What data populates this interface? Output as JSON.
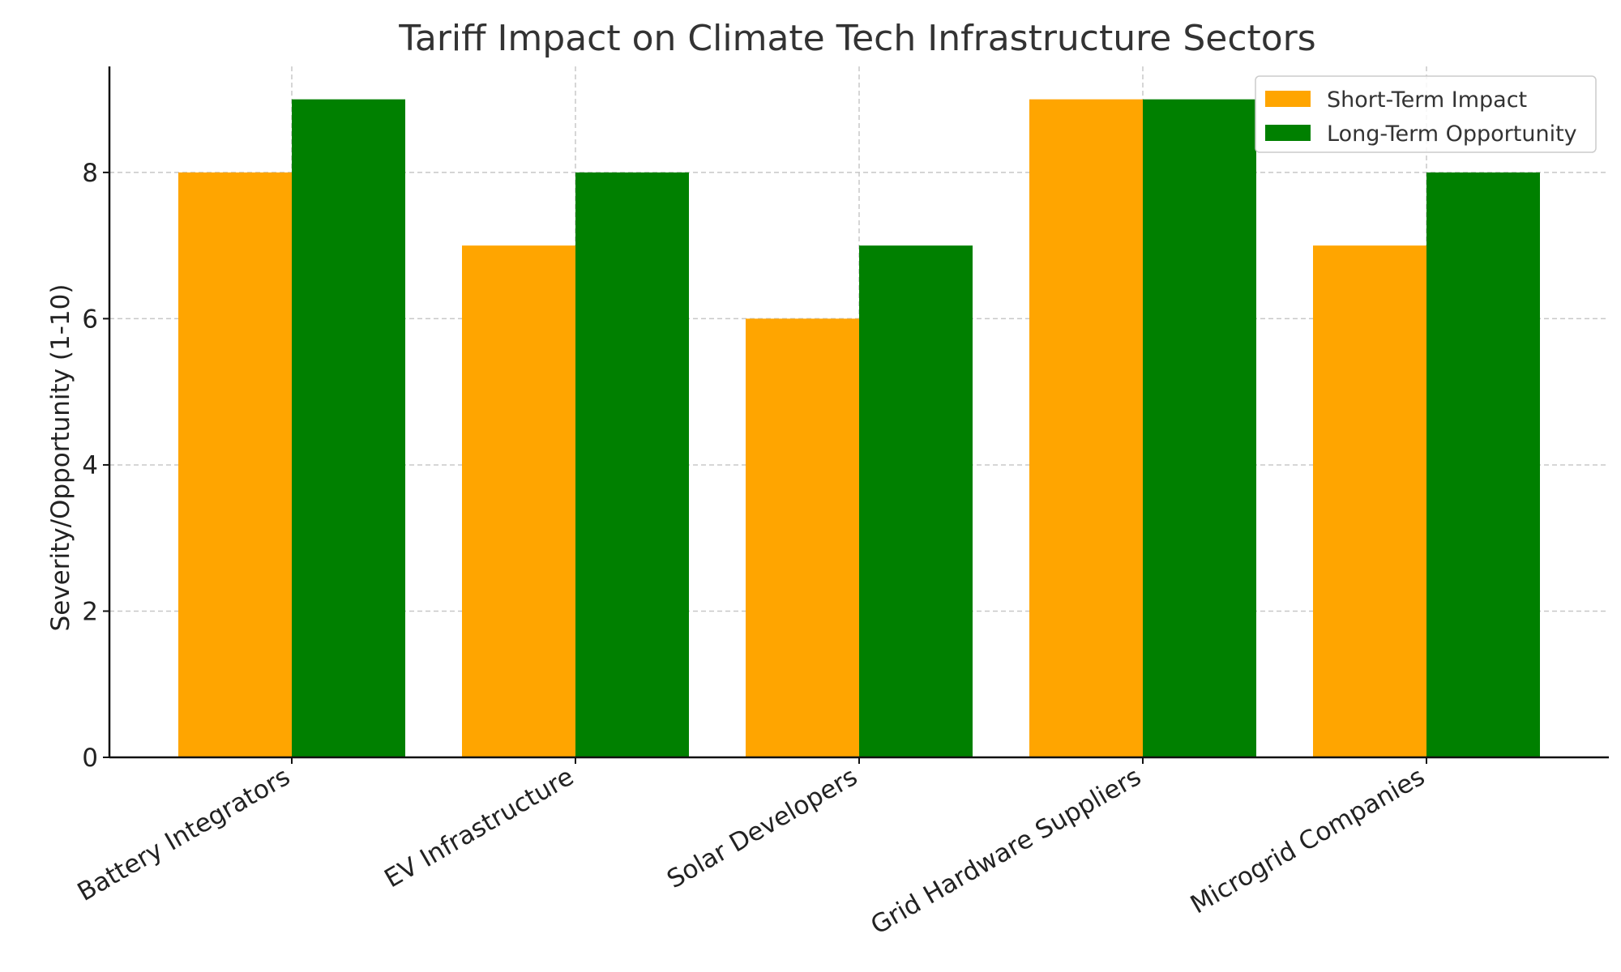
{
  "chart_data": {
    "type": "bar",
    "title": "Tariff Impact on Climate Tech Infrastructure Sectors",
    "xlabel": "",
    "ylabel": "Severity/Opportunity (1-10)",
    "categories": [
      "Battery Integrators",
      "EV Infrastructure",
      "Solar Developers",
      "Grid Hardware Suppliers",
      "Microgrid Companies"
    ],
    "series": [
      {
        "name": "Short-Term Impact",
        "color": "#FFA500",
        "values": [
          8,
          7,
          6,
          9,
          7
        ]
      },
      {
        "name": "Long-Term Opportunity",
        "color": "#008000",
        "values": [
          9,
          8,
          7,
          9,
          8
        ]
      }
    ],
    "ylim": [
      0,
      9.45
    ],
    "yticks": [
      0,
      2,
      4,
      6,
      8
    ],
    "grid": true,
    "legend_position": "top-right"
  }
}
